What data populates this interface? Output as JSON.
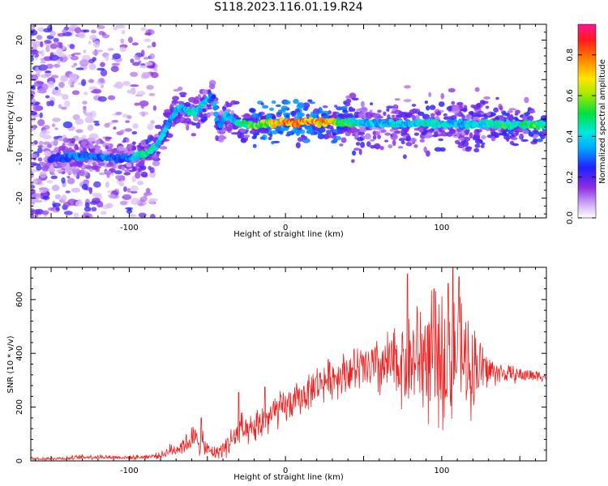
{
  "figure": {
    "title": "S118.2023.116.01.19.R24"
  },
  "chart_data": [
    {
      "type": "heatmap",
      "xlabel": "Height of straight line (km)",
      "ylabel": "Frequency (Hz)",
      "xlim": [
        -163,
        167
      ],
      "ylim": [
        -25,
        24
      ],
      "xticks": [
        -100,
        0,
        100
      ],
      "yticks": [
        -20,
        -10,
        0,
        10,
        20
      ],
      "grid": false,
      "colorbar": {
        "label": "Normalized spectral amplitude",
        "range": [
          0.0,
          0.95
        ],
        "ticks": [
          0.0,
          0.2,
          0.4,
          0.6,
          0.8
        ],
        "colormap": "white-purple-blue-cyan-green-yellow-red-magenta"
      },
      "ridge": {
        "x": [
          -150,
          -135,
          -120,
          -105,
          -95,
          -88,
          -82,
          -78,
          -74,
          -70,
          -66,
          -62,
          -58,
          -54,
          -50,
          -46,
          -44,
          -42,
          -38,
          -34,
          -30,
          -25,
          -20,
          -10,
          0,
          10,
          20,
          30,
          40,
          50,
          60,
          70,
          80,
          90,
          100,
          110,
          120,
          130,
          140,
          150,
          160,
          165
        ],
        "y": [
          -10,
          -9.5,
          -9.5,
          -9.8,
          -9.5,
          -8.5,
          -6.5,
          -3.5,
          -0.5,
          2.0,
          3.0,
          2.0,
          1.5,
          3.0,
          5.0,
          5.5,
          0.0,
          -2.0,
          1.0,
          0.0,
          -1.0,
          -1.5,
          -1.5,
          -1.0,
          -0.8,
          -0.8,
          -0.8,
          -0.8,
          -0.8,
          -1.0,
          -1.0,
          -1.2,
          -1.0,
          -1.0,
          -1.2,
          -1.2,
          -1.3,
          -1.3,
          -1.4,
          -1.5,
          -1.5,
          -1.5
        ],
        "amplitude": [
          0.25,
          0.35,
          0.35,
          0.3,
          0.45,
          0.55,
          0.45,
          0.5,
          0.4,
          0.45,
          0.4,
          0.45,
          0.5,
          0.45,
          0.4,
          0.35,
          0.4,
          0.3,
          0.45,
          0.4,
          0.5,
          0.55,
          0.65,
          0.7,
          0.9,
          0.92,
          0.85,
          0.75,
          0.55,
          0.45,
          0.4,
          0.45,
          0.4,
          0.5,
          0.45,
          0.4,
          0.45,
          0.45,
          0.55,
          0.5,
          0.6,
          0.55
        ]
      }
    },
    {
      "type": "line",
      "xlabel": "Height of straight line (km)",
      "ylabel": "SNR (10 * v/v)",
      "xlim": [
        -163,
        167
      ],
      "ylim": [
        0,
        720
      ],
      "xticks": [
        -100,
        0,
        100
      ],
      "yticks": [
        0,
        200,
        400,
        600
      ],
      "grid": false,
      "series": [
        {
          "color": "#ee2222",
          "envelope_x": [
            -163,
            -140,
            -130,
            -120,
            -100,
            -90,
            -80,
            -75,
            -70,
            -65,
            -60,
            -55,
            -50,
            -45,
            -40,
            -35,
            -30,
            -28,
            -25,
            -20,
            -15,
            -10,
            -5,
            0,
            10,
            20,
            30,
            40,
            50,
            60,
            70,
            80,
            85,
            90,
            95,
            100,
            105,
            110,
            115,
            120,
            125,
            130,
            135,
            140,
            150,
            160,
            167
          ],
          "envelope_y": [
            8,
            10,
            14,
            15,
            12,
            15,
            20,
            35,
            45,
            60,
            80,
            75,
            40,
            30,
            45,
            75,
            100,
            130,
            90,
            120,
            140,
            165,
            185,
            200,
            235,
            285,
            310,
            335,
            340,
            345,
            360,
            370,
            390,
            385,
            380,
            375,
            370,
            390,
            365,
            355,
            345,
            335,
            330,
            325,
            320,
            318,
            315
          ],
          "spread_y": [
            6,
            6,
            8,
            8,
            6,
            8,
            10,
            20,
            25,
            30,
            45,
            50,
            25,
            20,
            30,
            45,
            55,
            55,
            45,
            55,
            60,
            65,
            60,
            55,
            55,
            60,
            65,
            70,
            80,
            100,
            120,
            150,
            190,
            200,
            210,
            210,
            200,
            200,
            170,
            150,
            100,
            60,
            40,
            30,
            25,
            20,
            18
          ],
          "peaks": [
            {
              "x": -54,
              "y": 160
            },
            {
              "x": -30,
              "y": 255
            },
            {
              "x": -13,
              "y": 275
            },
            {
              "x": 78,
              "y": 695
            },
            {
              "x": 95,
              "y": 640
            },
            {
              "x": 104,
              "y": 660
            },
            {
              "x": 107,
              "y": 720
            },
            {
              "x": 111,
              "y": 685
            }
          ]
        }
      ]
    }
  ]
}
